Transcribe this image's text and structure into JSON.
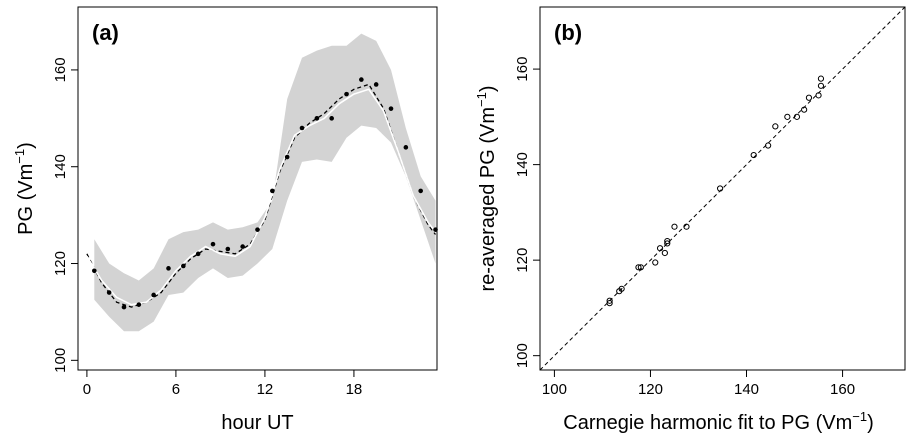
{
  "chart_data": [
    {
      "panel_label": "(a)",
      "type": "line",
      "xlabel": "hour UT",
      "ylabel": "PG (Vm",
      "ylabel_sup": "−1",
      "ylabel_close": ")",
      "xlim": [
        -0.6,
        23.6
      ],
      "ylim": [
        98,
        173
      ],
      "xticks": [
        0,
        6,
        12,
        18
      ],
      "yticks": [
        100,
        120,
        140,
        160
      ],
      "band": {
        "x": [
          0.5,
          1.5,
          2.5,
          3.5,
          4.5,
          5.5,
          6.5,
          7.5,
          8.5,
          9.5,
          10.5,
          11.5,
          12.5,
          13.5,
          14.5,
          15.5,
          16.5,
          17.5,
          18.5,
          19.5,
          20.5,
          21.5,
          22.5,
          23.5
        ],
        "lower": [
          112.5,
          109,
          106,
          106,
          108,
          113.5,
          114,
          117,
          119,
          117,
          117.5,
          120,
          123,
          133,
          141,
          141.5,
          141,
          146,
          148.5,
          148,
          145,
          138,
          129,
          120
        ],
        "upper": [
          125,
          120,
          118,
          116.5,
          119,
          125,
          126.5,
          127,
          128.5,
          127,
          127.5,
          128.5,
          133,
          154,
          162.5,
          164,
          165,
          165,
          167.5,
          166,
          160,
          148,
          138,
          133
        ]
      },
      "points": {
        "x": [
          0.5,
          1.5,
          2.5,
          3.5,
          4.5,
          5.5,
          6.5,
          7.5,
          8.5,
          9.5,
          10.5,
          11.5,
          12.5,
          13.5,
          14.5,
          15.5,
          16.5,
          17.5,
          18.5,
          19.5,
          20.5,
          21.5,
          22.5,
          23.5
        ],
        "y": [
          118.5,
          114,
          111,
          111.5,
          113.5,
          119,
          119.5,
          122,
          124,
          123,
          123.5,
          127,
          135,
          142,
          148,
          150,
          150,
          155,
          158,
          157,
          152,
          144,
          135,
          127
        ]
      },
      "series": [
        {
          "style": "dashed-black",
          "x": [
            0,
            1,
            2,
            3,
            4,
            5,
            6,
            7,
            8,
            9,
            10,
            11,
            12,
            13,
            14,
            15,
            16,
            17,
            18,
            19,
            20,
            21,
            22,
            23,
            23.5
          ],
          "y": [
            122,
            116,
            112,
            111,
            112,
            114,
            118,
            121,
            123,
            122.5,
            122,
            124,
            129,
            139,
            146,
            149,
            151,
            154,
            156,
            157,
            152,
            143,
            134,
            128,
            126
          ]
        },
        {
          "style": "solid-white",
          "x": [
            0,
            1,
            2,
            3,
            4,
            5,
            6,
            7,
            8,
            9,
            10,
            11,
            12,
            13,
            14,
            15,
            16,
            17,
            18,
            19,
            20,
            21,
            22,
            23,
            23.5
          ],
          "y": [
            121.5,
            116.5,
            113,
            111.5,
            112,
            114.5,
            118.5,
            121.5,
            123.5,
            122,
            121.5,
            123.5,
            129.5,
            139.5,
            146.5,
            148.5,
            150,
            153,
            155,
            156,
            151.5,
            143,
            134,
            128.5,
            126.5
          ]
        }
      ],
      "colors": {
        "band": "#d3d3d3",
        "points": "#000000",
        "dashed": "#000000",
        "white_line": "#ffffff"
      }
    },
    {
      "panel_label": "(b)",
      "type": "scatter",
      "xlabel": "Carnegie harmonic fit to PG (Vm",
      "xlabel_sup": "−1",
      "xlabel_close": ")",
      "ylabel": "re-averaged  PG (Vm",
      "ylabel_sup": "−1",
      "ylabel_close": ")",
      "xlim": [
        97,
        173
      ],
      "ylim": [
        97,
        173
      ],
      "xticks": [
        100,
        120,
        140,
        160
      ],
      "yticks": [
        100,
        120,
        140,
        160
      ],
      "reference_line": "y = x (dashed)",
      "points": {
        "x": [
          111.5,
          111.5,
          113.5,
          114,
          117.5,
          118,
          121,
          122,
          123,
          123.5,
          123.5,
          125,
          127.5,
          134.5,
          141.5,
          144.5,
          146,
          148.5,
          150.5,
          152,
          153,
          155.5,
          155.5,
          155
        ],
        "y": [
          111,
          111.5,
          113.5,
          114,
          118.5,
          118.5,
          119.5,
          122.5,
          121.5,
          124,
          123.5,
          127,
          127,
          135,
          142,
          144,
          148,
          150,
          150,
          151.5,
          154,
          156.5,
          158,
          154.5
        ]
      },
      "colors": {
        "points": "#000000",
        "line": "#000000"
      }
    }
  ]
}
